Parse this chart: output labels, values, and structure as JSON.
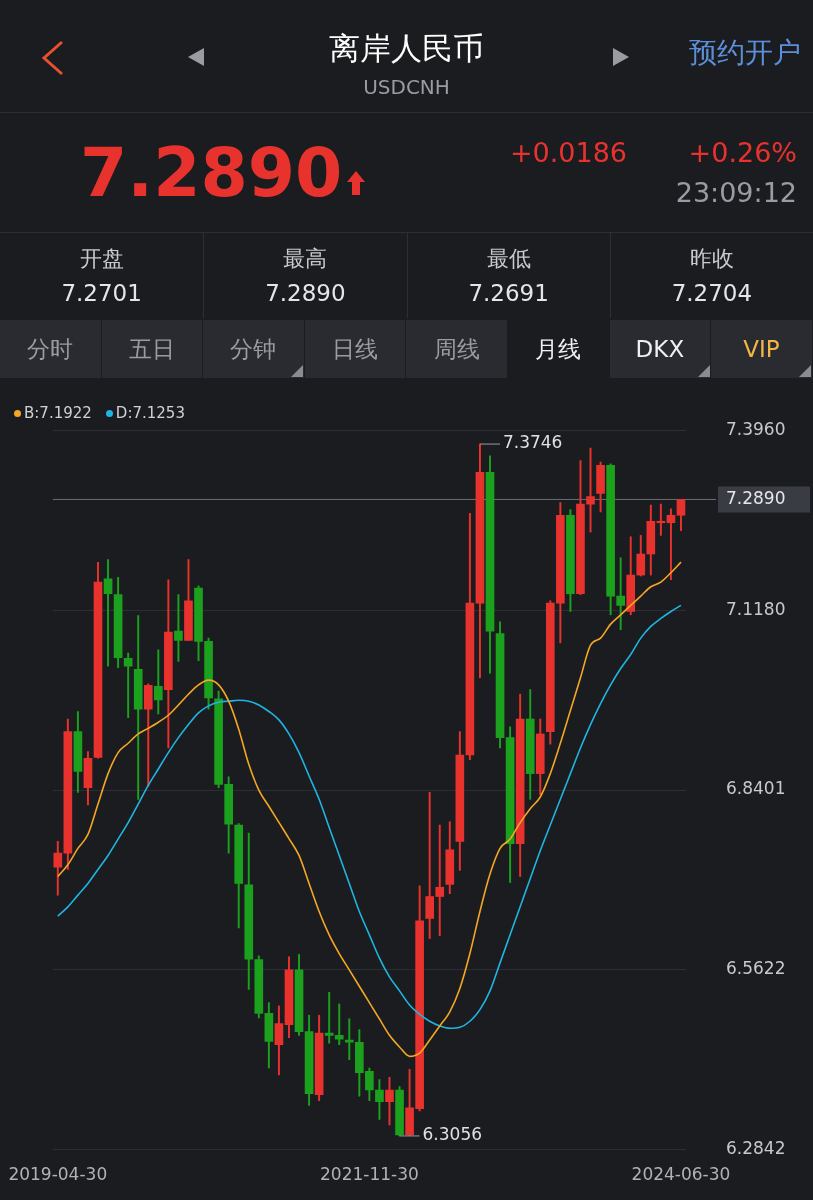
{
  "chart_data": {
    "type": "candlestick",
    "title": "离岸人民币",
    "subtitle": "USDCNH",
    "categories": [
      "2019-04-30",
      null,
      null,
      null,
      null,
      null,
      null,
      null,
      null,
      null,
      null,
      null,
      null,
      null,
      null,
      null,
      null,
      null,
      null,
      null,
      null,
      null,
      null,
      null,
      null,
      null,
      null,
      null,
      null,
      null,
      null,
      "2021-11-30",
      null,
      null,
      null,
      null,
      null,
      null,
      null,
      null,
      null,
      null,
      null,
      null,
      null,
      null,
      null,
      null,
      null,
      null,
      null,
      null,
      null,
      null,
      null,
      null,
      null,
      null,
      null,
      null,
      null,
      null,
      "2024-06-30"
    ],
    "ylim": [
      6.2842,
      7.396
    ],
    "yticks": [
      {
        "value": 7.396,
        "label": "7.3960"
      },
      {
        "value": 7.118,
        "label": "7.1180"
      },
      {
        "value": 6.8401,
        "label": "6.8401"
      },
      {
        "value": 6.5622,
        "label": "6.5622"
      },
      {
        "value": 6.2842,
        "label": "6.2842"
      }
    ],
    "grid": "y",
    "legend": "top left",
    "marker": "none",
    "line_style": "solid",
    "ref_lines": [
      {
        "axis": "y",
        "value": 7.289,
        "label": "7.2890",
        "color": "#6b6d74"
      }
    ],
    "series": [
      {
        "ohlc": [
          [
            6.721,
            6.7607,
            6.6777,
            6.7426
          ],
          [
            6.7426,
            6.9498,
            6.7174,
            6.9303
          ],
          [
            6.9303,
            6.9614,
            6.8365,
            6.869
          ],
          [
            6.8437,
            6.8993,
            6.817,
            6.8892
          ],
          [
            6.8906,
            7.1917,
            6.8892,
            7.1614
          ],
          [
            7.1664,
            7.196,
            7.0314,
            7.1433
          ],
          [
            7.1419,
            7.1686,
            7.0292,
            7.0444
          ],
          [
            7.0437,
            7.0516,
            6.952,
            7.0314
          ],
          [
            7.0264,
            7.1094,
            6.8257,
            6.965
          ],
          [
            6.965,
            7.004,
            6.8459,
            7.0018
          ],
          [
            7.0004,
            7.0567,
            6.9578,
            6.9794
          ],
          [
            6.9953,
            7.165,
            6.9051,
            7.0841
          ],
          [
            7.0856,
            7.1419,
            7.0386,
            7.0711
          ],
          [
            7.0711,
            7.196,
            7.0711,
            7.1325
          ],
          [
            7.152,
            7.1556,
            7.0401,
            7.0697
          ],
          [
            7.0697,
            7.0747,
            6.965,
            6.9823
          ],
          [
            6.9809,
            6.9931,
            6.8437,
            6.8488
          ],
          [
            6.8488,
            6.8603,
            6.7426,
            6.7874
          ],
          [
            6.786,
            6.7881,
            6.6271,
            6.6957
          ],
          [
            6.6935,
            6.7737,
            6.5318,
            6.5788
          ],
          [
            6.5781,
            6.5838,
            6.4878,
            6.495
          ],
          [
            6.495,
            6.5116,
            6.4106,
            6.4517
          ],
          [
            6.4467,
            6.5066,
            6.3997,
            6.4791
          ],
          [
            6.4777,
            6.5824,
            6.4575,
            6.5622
          ],
          [
            6.5622,
            6.586,
            6.4611,
            6.4669
          ],
          [
            6.4669,
            6.4921,
            6.3528,
            6.3709
          ],
          [
            6.3694,
            6.4921,
            6.36,
            6.4647
          ],
          [
            6.4647,
            6.5275,
            6.4488,
            6.4611
          ],
          [
            6.4611,
            6.5095,
            6.4467,
            6.4553
          ],
          [
            6.4539,
            6.4864,
            6.4236,
            6.4503
          ],
          [
            6.4503,
            6.4698,
            6.3672,
            6.4033
          ],
          [
            6.4055,
            6.4106,
            6.36,
            6.3766
          ],
          [
            6.3766,
            6.3925,
            6.3311,
            6.3586
          ],
          [
            6.3586,
            6.3961,
            6.3225,
            6.3766
          ],
          [
            6.3766,
            6.3817,
            6.3056,
            6.3073
          ],
          [
            6.3073,
            6.4084,
            6.306,
            6.3492
          ],
          [
            6.3478,
            6.6921,
            6.3441,
            6.638
          ],
          [
            6.6416,
            6.8365,
            6.6105,
            6.6755
          ],
          [
            6.6755,
            6.786,
            6.6149,
            6.6899
          ],
          [
            6.6943,
            6.791,
            6.6798,
            6.7477
          ],
          [
            6.7607,
            6.9303,
            6.7159,
            6.8942
          ],
          [
            6.8942,
            7.2675,
            6.887,
            7.1289
          ],
          [
            7.1289,
            7.3746,
            7.0134,
            7.331
          ],
          [
            7.331,
            7.3563,
            7.0206,
            7.0856
          ],
          [
            7.0819,
            7.1,
            6.9051,
            6.921
          ],
          [
            6.921,
            6.9376,
            6.6972,
            6.7571
          ],
          [
            6.7571,
            6.9881,
            6.7065,
            6.9498
          ],
          [
            6.9498,
            6.9953,
            6.8257,
            6.8654
          ],
          [
            6.8654,
            6.9498,
            6.8329,
            6.9267
          ],
          [
            6.9303,
            7.1325,
            6.9109,
            7.1289
          ],
          [
            7.1289,
            7.2841,
            7.0675,
            7.2646
          ],
          [
            7.2646,
            7.2733,
            7.1159,
            7.1433
          ],
          [
            7.1433,
            7.3491,
            7.1419,
            7.2819
          ],
          [
            7.2819,
            7.3685,
            7.2386,
            7.2935
          ],
          [
            7.2985,
            7.3469,
            7.2696,
            7.3418
          ],
          [
            7.3418,
            7.344,
            7.1108,
            7.1397
          ],
          [
            7.1397,
            7.1989,
            7.0877,
            7.1253
          ],
          [
            7.1159,
            7.2314,
            7.1108,
            7.1722
          ],
          [
            7.1722,
            7.2335,
            7.1707,
            7.2047
          ],
          [
            7.2047,
            7.2805,
            7.1722,
            7.2552
          ],
          [
            7.253,
            7.2819,
            7.2335,
            7.2552
          ],
          [
            7.253,
            7.2747,
            7.165,
            7.2646
          ],
          [
            7.2646,
            7.289,
            7.2408,
            7.289
          ]
        ],
        "colors": [
          "#e8322d",
          "#e8322d",
          "#1ba11d",
          "#e8322d",
          "#e8322d",
          "#1ba11d",
          "#1ba11d",
          "#1ba11d",
          "#1ba11d",
          "#e8322d",
          "#1ba11d",
          "#e8322d",
          "#1ba11d",
          "#e8322d",
          "#1ba11d",
          "#1ba11d",
          "#1ba11d",
          "#1ba11d",
          "#1ba11d",
          "#1ba11d",
          "#1ba11d",
          "#1ba11d",
          "#e8322d",
          "#e8322d",
          "#1ba11d",
          "#1ba11d",
          "#e8322d",
          "#1ba11d",
          "#1ba11d",
          "#1ba11d",
          "#1ba11d",
          "#1ba11d",
          "#1ba11d",
          "#e8322d",
          "#1ba11d",
          "#e8322d",
          "#e8322d",
          "#e8322d",
          "#e8322d",
          "#e8322d",
          "#e8322d",
          "#e8322d",
          "#e8322d",
          "#1ba11d",
          "#1ba11d",
          "#1ba11d",
          "#e8322d",
          "#1ba11d",
          "#e8322d",
          "#e8322d",
          "#e8322d",
          "#1ba11d",
          "#e8322d",
          "#e8322d",
          "#e8322d",
          "#1ba11d",
          "#1ba11d",
          "#e8322d",
          "#e8322d",
          "#e8322d",
          "#e8322d",
          "#e8322d",
          "#e8322d"
        ]
      },
      {
        "type": "line",
        "name": "B:7.1922",
        "color": "#f5a623",
        "values": [
          6.7065,
          6.7246,
          6.7499,
          6.7715,
          6.8184,
          6.8654,
          6.8979,
          6.9123,
          6.9267,
          6.9354,
          6.9448,
          6.9556,
          6.9715,
          6.9881,
          7.0025,
          7.0098,
          7.0025,
          6.9773,
          6.934,
          6.8798,
          6.84,
          6.815,
          6.79,
          6.765,
          6.739,
          6.6957,
          6.6524,
          6.6163,
          6.5874,
          6.5622,
          6.5369,
          6.5116,
          6.4864,
          6.4611,
          6.4431,
          6.4286,
          6.4337,
          6.4539,
          6.4756,
          6.4972,
          6.5333,
          6.5874,
          6.6524,
          6.7102,
          6.7499,
          6.7643,
          6.7896,
          6.8112,
          6.8293,
          6.8654,
          6.9123,
          6.9628,
          7.0134,
          7.0639,
          7.0747,
          7.0964,
          7.1108,
          7.1253,
          7.1397,
          7.1541,
          7.1614,
          7.1758,
          7.1922
        ]
      },
      {
        "type": "line",
        "name": "D:7.1253",
        "color": "#1fb5e0",
        "values": [
          6.6451,
          6.6596,
          6.6777,
          6.6957,
          6.7174,
          6.739,
          6.7643,
          6.7896,
          6.8184,
          6.8473,
          6.8726,
          6.8979,
          6.921,
          6.9412,
          6.9592,
          6.9701,
          6.9758,
          6.9773,
          6.9787,
          6.9773,
          6.9715,
          6.9614,
          6.9484,
          6.9267,
          6.8979,
          6.8618,
          6.8257,
          6.7823,
          6.739,
          6.6957,
          6.6524,
          6.6163,
          6.5802,
          6.5513,
          6.5297,
          6.508,
          6.4936,
          6.4828,
          6.4756,
          6.4719,
          6.4734,
          6.4828,
          6.5008,
          6.5297,
          6.573,
          6.6163,
          6.6596,
          6.7029,
          6.7463,
          6.786,
          6.8257,
          6.8654,
          6.9051,
          6.9412,
          6.9737,
          7.0025,
          7.0278,
          7.0495,
          7.0747,
          7.0928,
          7.1051,
          7.1159,
          7.1253
        ]
      }
    ],
    "annotations": [
      "预约开户",
      "7.2890",
      "+0.0186",
      "+0.26%",
      "23:09:12",
      "开盘",
      "7.2701",
      "最高",
      "7.2890",
      "最低",
      "7.2691",
      "昨收",
      "7.2704",
      "分时",
      "五日",
      "分钟",
      "日线",
      "周线",
      "月线",
      "DKX",
      "VIP",
      "7.3746",
      "6.3056"
    ]
  }
}
